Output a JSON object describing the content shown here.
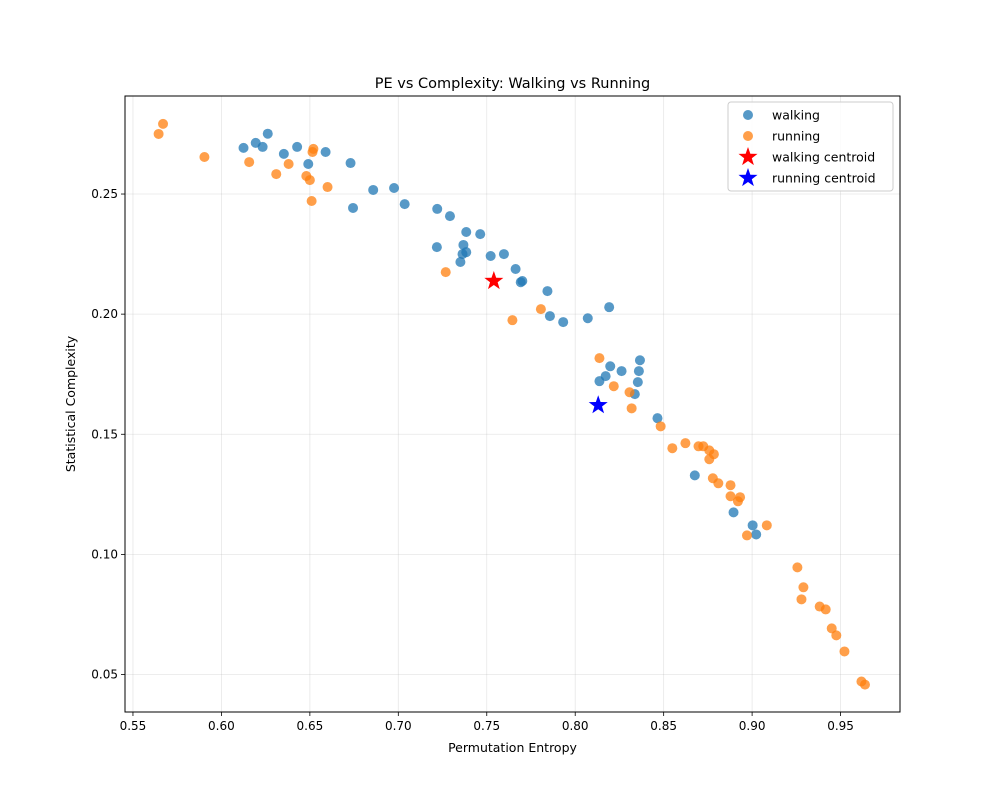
{
  "chart_data": {
    "type": "scatter",
    "title": "PE vs Complexity: Walking vs Running",
    "xlabel": "Permutation Entropy",
    "ylabel": "Statistical Complexity",
    "xlim": [
      0.5455,
      0.9836
    ],
    "ylim": [
      0.0344,
      0.2908
    ],
    "xticks": [
      0.55,
      0.6,
      0.65,
      0.7,
      0.75,
      0.8,
      0.85,
      0.9,
      0.95
    ],
    "xtick_labels": [
      "0.55",
      "0.60",
      "0.65",
      "0.70",
      "0.75",
      "0.80",
      "0.85",
      "0.90",
      "0.95"
    ],
    "yticks": [
      0.05,
      0.1,
      0.15,
      0.2,
      0.25
    ],
    "ytick_labels": [
      "0.05",
      "0.10",
      "0.15",
      "0.20",
      "0.25"
    ],
    "grid": true,
    "legend_position": "top-right",
    "series": [
      {
        "name": "walking",
        "color": "#1f77b4",
        "marker": "circle",
        "points": [
          [
            0.6125,
            0.2692
          ],
          [
            0.6194,
            0.2713
          ],
          [
            0.6233,
            0.2696
          ],
          [
            0.6262,
            0.2751
          ],
          [
            0.6353,
            0.2667
          ],
          [
            0.6428,
            0.2696
          ],
          [
            0.6491,
            0.2625
          ],
          [
            0.6589,
            0.2675
          ],
          [
            0.673,
            0.2629
          ],
          [
            0.6744,
            0.2442
          ],
          [
            0.6858,
            0.2517
          ],
          [
            0.6976,
            0.2525
          ],
          [
            0.7036,
            0.2458
          ],
          [
            0.722,
            0.2438
          ],
          [
            0.7292,
            0.2408
          ],
          [
            0.7384,
            0.2342
          ],
          [
            0.7463,
            0.2333
          ],
          [
            0.7218,
            0.2279
          ],
          [
            0.7368,
            0.2288
          ],
          [
            0.7363,
            0.225
          ],
          [
            0.7384,
            0.2258
          ],
          [
            0.7351,
            0.2217
          ],
          [
            0.7522,
            0.2242
          ],
          [
            0.7597,
            0.225
          ],
          [
            0.7663,
            0.2188
          ],
          [
            0.7692,
            0.2133
          ],
          [
            0.7701,
            0.2138
          ],
          [
            0.7843,
            0.2096
          ],
          [
            0.7857,
            0.1992
          ],
          [
            0.7932,
            0.1967
          ],
          [
            0.8071,
            0.1983
          ],
          [
            0.8192,
            0.2029
          ],
          [
            0.8366,
            0.1808
          ],
          [
            0.8198,
            0.1783
          ],
          [
            0.8262,
            0.1763
          ],
          [
            0.836,
            0.1763
          ],
          [
            0.8172,
            0.1742
          ],
          [
            0.8137,
            0.1721
          ],
          [
            0.8354,
            0.1717
          ],
          [
            0.8337,
            0.1667
          ],
          [
            0.8465,
            0.1567
          ],
          [
            0.8676,
            0.1329
          ],
          [
            0.8895,
            0.1175
          ],
          [
            0.9003,
            0.1121
          ],
          [
            0.9023,
            0.1083
          ]
        ]
      },
      {
        "name": "running",
        "color": "#ff7f0e",
        "marker": "circle",
        "points": [
          [
            0.567,
            0.2792
          ],
          [
            0.5645,
            0.275
          ],
          [
            0.5904,
            0.2654
          ],
          [
            0.6157,
            0.2633
          ],
          [
            0.631,
            0.2583
          ],
          [
            0.638,
            0.2625
          ],
          [
            0.652,
            0.2688
          ],
          [
            0.6515,
            0.2675
          ],
          [
            0.648,
            0.2575
          ],
          [
            0.65,
            0.2558
          ],
          [
            0.66,
            0.2529
          ],
          [
            0.651,
            0.2471
          ],
          [
            0.7268,
            0.2175
          ],
          [
            0.7645,
            0.1975
          ],
          [
            0.7806,
            0.2021
          ],
          [
            0.8137,
            0.1817
          ],
          [
            0.8218,
            0.17
          ],
          [
            0.8307,
            0.1675
          ],
          [
            0.8319,
            0.1608
          ],
          [
            0.8483,
            0.1533
          ],
          [
            0.8549,
            0.1442
          ],
          [
            0.8623,
            0.1463
          ],
          [
            0.8697,
            0.145
          ],
          [
            0.8724,
            0.145
          ],
          [
            0.8758,
            0.1433
          ],
          [
            0.8784,
            0.1417
          ],
          [
            0.8758,
            0.1396
          ],
          [
            0.8778,
            0.1317
          ],
          [
            0.8809,
            0.1296
          ],
          [
            0.8878,
            0.1288
          ],
          [
            0.8878,
            0.1242
          ],
          [
            0.892,
            0.1221
          ],
          [
            0.8932,
            0.1238
          ],
          [
            0.8971,
            0.1079
          ],
          [
            0.9083,
            0.1121
          ],
          [
            0.9256,
            0.0946
          ],
          [
            0.929,
            0.0863
          ],
          [
            0.9279,
            0.0813
          ],
          [
            0.9382,
            0.0783
          ],
          [
            0.9416,
            0.0771
          ],
          [
            0.945,
            0.0692
          ],
          [
            0.9476,
            0.0663
          ],
          [
            0.9522,
            0.0596
          ],
          [
            0.9618,
            0.0471
          ],
          [
            0.9638,
            0.0458
          ]
        ]
      }
    ],
    "centroids": [
      {
        "name": "walking centroid",
        "color": "#ff0000",
        "marker": "star",
        "x": 0.754,
        "y": 0.2138
      },
      {
        "name": "running centroid",
        "color": "#0000ff",
        "marker": "star",
        "x": 0.813,
        "y": 0.1621
      }
    ]
  }
}
